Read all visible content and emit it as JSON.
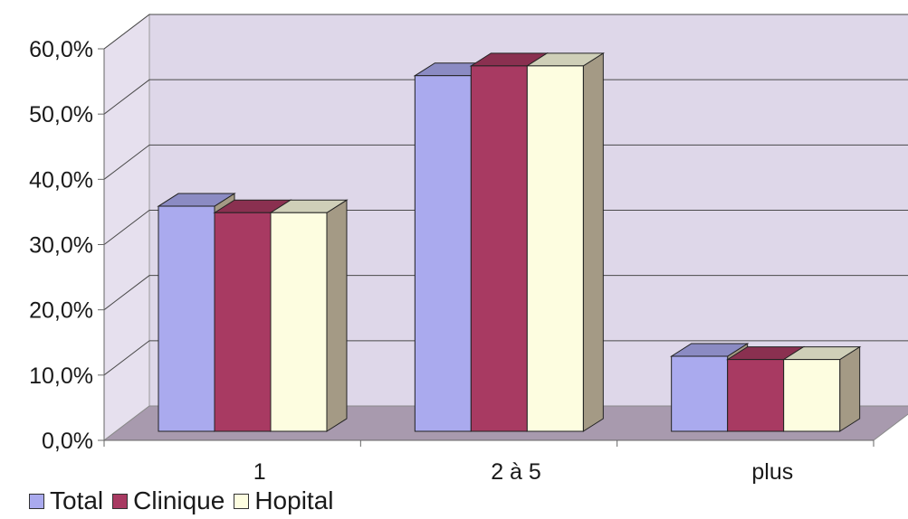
{
  "chart_data": {
    "type": "bar",
    "categories": [
      "1",
      "2 à 5",
      "plus"
    ],
    "series": [
      {
        "name": "Total",
        "values": [
          34.5,
          54.5,
          11.5
        ],
        "color": "#aaaaee"
      },
      {
        "name": "Clinique",
        "values": [
          33.5,
          56.0,
          11.0
        ],
        "color": "#a83a62"
      },
      {
        "name": "Hopital",
        "values": [
          33.5,
          56.0,
          11.0
        ],
        "color": "#fdfde0"
      }
    ],
    "ylim": [
      0,
      60
    ],
    "yticks": [
      "0,0%",
      "10,0%",
      "20,0%",
      "30,0%",
      "40,0%",
      "50,0%",
      "60,0%"
    ],
    "grid": true,
    "legend_position": "bottom-left",
    "style": "3d-clustered-column"
  }
}
